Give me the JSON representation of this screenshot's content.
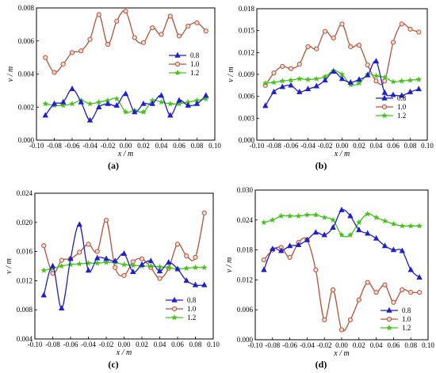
{
  "series_colors": [
    "#1f1fcc",
    "#b5533a",
    "#44c21b"
  ],
  "chart_data": [
    {
      "type": "line",
      "panel_label": "(a)",
      "xlabel": "x / m",
      "ylabel": "v / m",
      "xlim": [
        -0.1,
        0.1
      ],
      "ylim": [
        0,
        0.008
      ],
      "x_ticks": [
        "-0.10",
        "-0.08",
        "-0.06",
        "-0.04",
        "-0.02",
        "0.00",
        "0.02",
        "0.04",
        "0.06",
        "0.08",
        "0.10"
      ],
      "y_ticks": [
        "0.000",
        "0.002",
        "0.004",
        "0.006",
        "0.008"
      ],
      "legend_position": "right",
      "x": [
        -0.09,
        -0.08,
        -0.07,
        -0.06,
        -0.05,
        -0.04,
        -0.03,
        -0.02,
        -0.01,
        0.0,
        0.01,
        0.02,
        0.03,
        0.04,
        0.05,
        0.06,
        0.07,
        0.08,
        0.09
      ],
      "series": [
        {
          "name": "0.8",
          "marker": "triangle",
          "values": [
            0.0015,
            0.0022,
            0.0023,
            0.0031,
            0.0023,
            0.0012,
            0.002,
            0.0022,
            0.0021,
            0.0028,
            0.0017,
            0.0022,
            0.0022,
            0.0027,
            0.0015,
            0.0024,
            0.0021,
            0.0022,
            0.0027
          ]
        },
        {
          "name": "1.0",
          "marker": "circle",
          "values": [
            0.005,
            0.0041,
            0.0046,
            0.0053,
            0.0054,
            0.0061,
            0.0076,
            0.0058,
            0.0072,
            0.0078,
            0.0062,
            0.0059,
            0.0068,
            0.0064,
            0.0075,
            0.0063,
            0.0069,
            0.0071,
            0.0066
          ]
        },
        {
          "name": "1.2",
          "marker": "star",
          "values": [
            0.0022,
            0.0021,
            0.0021,
            0.0022,
            0.0024,
            0.0022,
            0.0023,
            0.0024,
            0.0025,
            0.0017,
            0.0018,
            0.0017,
            0.0024,
            0.0023,
            0.0022,
            0.0022,
            0.0023,
            0.0024,
            0.0025
          ]
        }
      ]
    },
    {
      "type": "line",
      "panel_label": "(b)",
      "xlabel": "x / m",
      "ylabel": "v / m",
      "xlim": [
        -0.1,
        0.1
      ],
      "ylim": [
        0,
        0.018
      ],
      "x_ticks": [
        "-0.10",
        "-0.08",
        "-0.06",
        "-0.04",
        "-0.02",
        "0.00",
        "0.02",
        "0.04",
        "0.06",
        "0.08",
        "0.10"
      ],
      "y_ticks": [
        "0.000",
        "0.003",
        "0.006",
        "0.009",
        "0.012",
        "0.015",
        "0.018"
      ],
      "legend_position": "bottom-right",
      "x": [
        -0.09,
        -0.08,
        -0.07,
        -0.06,
        -0.05,
        -0.04,
        -0.03,
        -0.02,
        -0.01,
        0.0,
        0.01,
        0.02,
        0.03,
        0.04,
        0.05,
        0.06,
        0.07,
        0.08,
        0.09
      ],
      "series": [
        {
          "name": "0.8",
          "marker": "triangle",
          "values": [
            0.0047,
            0.0066,
            0.0073,
            0.0075,
            0.0066,
            0.007,
            0.0074,
            0.0082,
            0.0094,
            0.0084,
            0.0079,
            0.0083,
            0.0089,
            0.0108,
            0.0065,
            0.0062,
            0.0061,
            0.0066,
            0.007
          ]
        },
        {
          "name": "1.0",
          "marker": "circle",
          "values": [
            0.0075,
            0.0092,
            0.0101,
            0.0098,
            0.0104,
            0.0128,
            0.0125,
            0.0149,
            0.014,
            0.0159,
            0.0128,
            0.013,
            0.0103,
            0.0081,
            0.0081,
            0.0134,
            0.0159,
            0.0152,
            0.0148
          ]
        },
        {
          "name": "1.2",
          "marker": "star",
          "values": [
            0.0078,
            0.0079,
            0.0081,
            0.0082,
            0.0084,
            0.0083,
            0.0084,
            0.0087,
            0.0095,
            0.009,
            0.0076,
            0.0078,
            0.009,
            0.0088,
            0.0086,
            0.008,
            0.0081,
            0.0082,
            0.0083
          ]
        }
      ]
    },
    {
      "type": "line",
      "panel_label": "(c)",
      "xlabel": "x / m",
      "ylabel": "v / m",
      "xlim": [
        -0.1,
        0.1
      ],
      "ylim": [
        0.004,
        0.024
      ],
      "x_ticks": [
        "-0.10",
        "-0.08",
        "-0.06",
        "-0.04",
        "-0.02",
        "0.00",
        "0.02",
        "0.04",
        "0.06",
        "0.08",
        "0.10"
      ],
      "y_ticks": [
        "0.004",
        "0.008",
        "0.012",
        "0.016",
        "0.020",
        "0.024"
      ],
      "legend_position": "bottom-right",
      "x": [
        -0.09,
        -0.08,
        -0.07,
        -0.06,
        -0.05,
        -0.04,
        -0.03,
        -0.02,
        -0.01,
        0.0,
        0.01,
        0.02,
        0.03,
        0.04,
        0.05,
        0.06,
        0.07,
        0.08,
        0.09
      ],
      "series": [
        {
          "name": "0.8",
          "marker": "triangle",
          "values": [
            0.01,
            0.014,
            0.0082,
            0.015,
            0.0197,
            0.0134,
            0.0151,
            0.015,
            0.0147,
            0.0157,
            0.0132,
            0.0142,
            0.0147,
            0.0133,
            0.0145,
            0.0136,
            0.012,
            0.0114,
            0.0114
          ]
        },
        {
          "name": "1.0",
          "marker": "circle",
          "values": [
            0.0168,
            0.013,
            0.0148,
            0.015,
            0.0159,
            0.017,
            0.016,
            0.0203,
            0.0138,
            0.0127,
            0.0146,
            0.015,
            0.0138,
            0.0123,
            0.0137,
            0.017,
            0.0154,
            0.0152,
            0.0213
          ]
        },
        {
          "name": "1.2",
          "marker": "star",
          "values": [
            0.0134,
            0.0137,
            0.014,
            0.0142,
            0.0143,
            0.0144,
            0.0144,
            0.0145,
            0.0145,
            0.0142,
            0.0141,
            0.014,
            0.014,
            0.0139,
            0.0138,
            0.0136,
            0.0137,
            0.0138,
            0.0138
          ]
        }
      ]
    },
    {
      "type": "line",
      "panel_label": "(d)",
      "xlabel": "x / m",
      "ylabel": "v / m",
      "xlim": [
        -0.1,
        0.1
      ],
      "ylim": [
        0,
        0.03
      ],
      "x_ticks": [
        "-0.10",
        "-0.08",
        "-0.06",
        "-0.04",
        "-0.02",
        "0.00",
        "0.02",
        "0.04",
        "0.06",
        "0.08",
        "0.10"
      ],
      "y_ticks": [
        "0.000",
        "0.006",
        "0.012",
        "0.018",
        "0.024",
        "0.030"
      ],
      "legend_position": "bottom-right",
      "x": [
        -0.09,
        -0.08,
        -0.07,
        -0.06,
        -0.05,
        -0.04,
        -0.03,
        -0.02,
        -0.01,
        0.0,
        0.01,
        0.02,
        0.03,
        0.04,
        0.05,
        0.06,
        0.07,
        0.08,
        0.09
      ],
      "series": [
        {
          "name": "0.8",
          "marker": "triangle",
          "values": [
            0.014,
            0.0182,
            0.0178,
            0.0188,
            0.019,
            0.02,
            0.0215,
            0.021,
            0.0225,
            0.026,
            0.0248,
            0.022,
            0.0213,
            0.0203,
            0.0188,
            0.018,
            0.0178,
            0.014,
            0.0125
          ]
        },
        {
          "name": "1.0",
          "marker": "circle",
          "values": [
            0.016,
            0.018,
            0.0185,
            0.0165,
            0.0195,
            0.02,
            0.014,
            0.004,
            0.01,
            0.002,
            0.004,
            0.008,
            0.0115,
            0.0095,
            0.011,
            0.0075,
            0.01,
            0.0095,
            0.0095
          ]
        },
        {
          "name": "1.2",
          "marker": "star",
          "values": [
            0.0235,
            0.024,
            0.0248,
            0.0248,
            0.0248,
            0.025,
            0.025,
            0.0245,
            0.024,
            0.021,
            0.021,
            0.0235,
            0.0252,
            0.0245,
            0.0238,
            0.0232,
            0.0228,
            0.0228,
            0.0228
          ]
        }
      ]
    }
  ]
}
